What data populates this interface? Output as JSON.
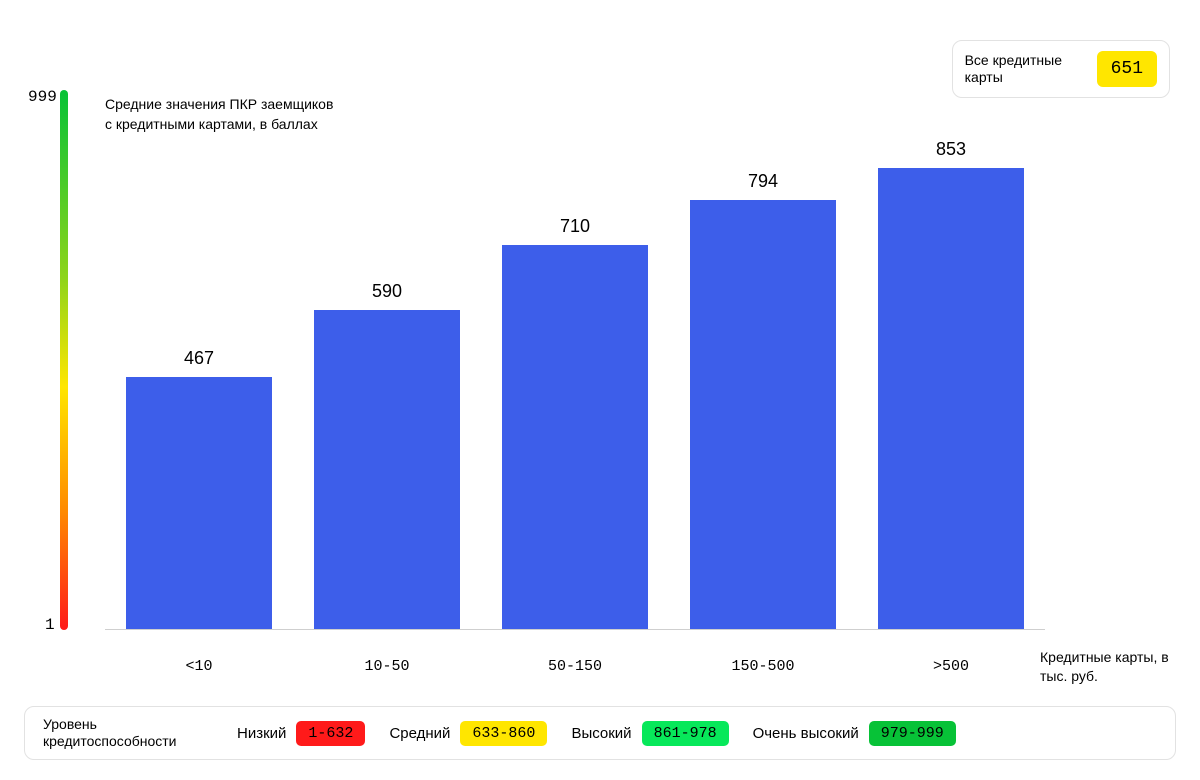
{
  "chart": {
    "type": "bar",
    "title": "Средние значения ПКР заемщиков с кредитными картами, в баллах",
    "x_axis_title": "Кредитные карты, в тыс. руб.",
    "categories": [
      "<10",
      "10-50",
      "50-150",
      "150-500",
      ">500"
    ],
    "values": [
      467,
      590,
      710,
      794,
      853
    ],
    "bar_color": "#3d5eea",
    "background_color": "#ffffff",
    "value_label_fontsize": 18,
    "category_label_fontsize": 15,
    "title_fontsize": 14,
    "y_scale": {
      "min": 1,
      "max": 999,
      "min_label": "1",
      "max_label": "999",
      "gradient_stops": [
        {
          "pct": 0,
          "color": "#07c237"
        },
        {
          "pct": 35,
          "color": "#8fd41a"
        },
        {
          "pct": 55,
          "color": "#ffe600"
        },
        {
          "pct": 78,
          "color": "#ff8a00"
        },
        {
          "pct": 100,
          "color": "#ff1a1a"
        }
      ]
    }
  },
  "summary": {
    "label": "Все кредитные карты",
    "value": "651",
    "value_bg": "#ffe600"
  },
  "legend": {
    "title": "Уровень кредитоспособности",
    "items": [
      {
        "name": "Низкий",
        "range": "1-632",
        "color": "#ff1a1a"
      },
      {
        "name": "Средний",
        "range": "633-860",
        "color": "#ffe600"
      },
      {
        "name": "Высокий",
        "range": "861-978",
        "color": "#07e85a"
      },
      {
        "name": "Очень высокий",
        "range": "979-999",
        "color": "#07c237"
      }
    ]
  }
}
